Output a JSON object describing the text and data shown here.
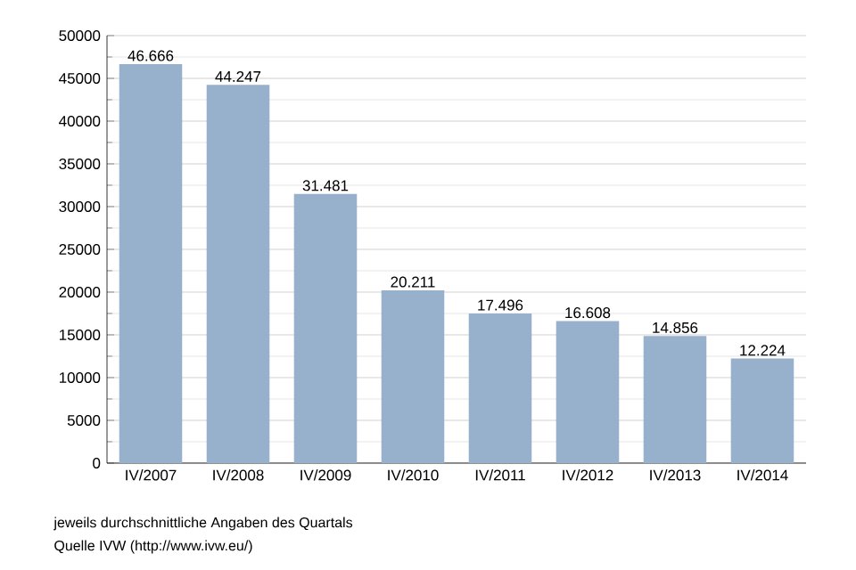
{
  "chart_data": {
    "type": "bar",
    "categories": [
      "IV/2007",
      "IV/2008",
      "IV/2009",
      "IV/2010",
      "IV/2011",
      "IV/2012",
      "IV/2013",
      "IV/2014"
    ],
    "values": [
      46666,
      44247,
      31481,
      20211,
      17496,
      16608,
      14856,
      12224
    ],
    "value_labels": [
      "46.666",
      "44.247",
      "31.481",
      "20.211",
      "17.496",
      "16.608",
      "14.856",
      "12.224"
    ],
    "color": "#97b0cb",
    "ylim": [
      0,
      50000
    ],
    "yticks": [
      0,
      5000,
      10000,
      15000,
      20000,
      25000,
      30000,
      35000,
      40000,
      45000,
      50000
    ],
    "grid": "y",
    "annotations": [
      "jeweils durchschnittliche Angaben des Quartals",
      "Quelle IVW (http://www.ivw.eu/)"
    ]
  }
}
